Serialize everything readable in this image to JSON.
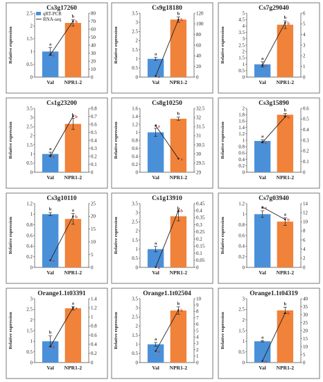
{
  "legend": [
    {
      "label": "qRT-PCR",
      "kind": "bar",
      "color": "#4a90d9"
    },
    {
      "label": "RNA-seq",
      "kind": "line",
      "color": "#222222"
    }
  ],
  "colors": {
    "val_bar": "#4a90d9",
    "npr_bar": "#f0823a",
    "line": "#222222",
    "rna_letter": "#d9332b",
    "qpcr_letter": "#222222"
  },
  "chart_data": [
    {
      "type": "bar+line",
      "title": "Cs3g17260",
      "categories": [
        "Val",
        "NPR1-2"
      ],
      "ylabel": "Relative expression",
      "left": {
        "ylim": [
          0,
          2.5
        ],
        "ticks": [
          "0",
          "0.5",
          "1",
          "1.5",
          "2",
          "2.5"
        ],
        "values": [
          1,
          2.12
        ],
        "errors": [
          0.15,
          0.12
        ],
        "letters": [
          "a",
          "b"
        ]
      },
      "right": {
        "ylim": [
          0,
          80
        ],
        "ticks": [
          "0",
          "10",
          "20",
          "30",
          "40",
          "50",
          "60",
          "70",
          "80"
        ],
        "values": [
          28,
          70
        ],
        "letters": [
          "a",
          "b"
        ]
      }
    },
    {
      "type": "bar+line",
      "title": "Cs9g18180",
      "categories": [
        "Val",
        "NPR1-2"
      ],
      "ylabel": "Relative expression",
      "left": {
        "ylim": [
          0,
          3.5
        ],
        "ticks": [
          "0",
          "0.5",
          "1",
          "1.5",
          "2",
          "2.5",
          "3",
          "3.5"
        ],
        "values": [
          1,
          3.15
        ],
        "errors": [
          0.08,
          0.15
        ],
        "letters": [
          "a",
          "b"
        ]
      },
      "right": {
        "ylim": [
          0,
          120
        ],
        "ticks": [
          "0",
          "20",
          "40",
          "60",
          "80",
          "100",
          "120"
        ],
        "values": [
          2,
          108
        ],
        "letters": [
          "a",
          "b"
        ]
      }
    },
    {
      "type": "bar+line",
      "title": "Cs7g29040",
      "categories": [
        "Val",
        "NPR1-2"
      ],
      "ylabel": "Relative expression",
      "left": {
        "ylim": [
          0,
          5
        ],
        "ticks": [
          "0",
          "0.5",
          "1",
          "1.5",
          "2",
          "2.5",
          "3",
          "3.5",
          "4",
          "4.5",
          "5"
        ],
        "values": [
          1,
          4.1
        ],
        "errors": [
          0.2,
          0.3
        ],
        "letters": [
          "a",
          "b"
        ]
      },
      "right": {
        "ylim": [
          0,
          6
        ],
        "ticks": [
          "0",
          "1",
          "2",
          "3",
          "4",
          "5",
          "6"
        ],
        "values": [
          1.1,
          5.1
        ],
        "letters": [
          "a",
          "b"
        ]
      }
    },
    {
      "type": "bar+line",
      "title": "Cs1g23200",
      "categories": [
        "Val",
        "NPR1-2"
      ],
      "ylabel": "Relative expression",
      "left": {
        "ylim": [
          0,
          3.5
        ],
        "ticks": [
          "0",
          "0.5",
          "1",
          "1.5",
          "2",
          "2.5",
          "3",
          "3.5"
        ],
        "values": [
          1,
          2.65
        ],
        "errors": [
          0.1,
          0.3
        ],
        "letters": [
          "a",
          "b"
        ]
      },
      "right": {
        "ylim": [
          0,
          0.8
        ],
        "ticks": [
          "0",
          "0.1",
          "0.2",
          "0.3",
          "0.4",
          "0.5",
          "0.6",
          "0.7",
          "0.8"
        ],
        "values": [
          0.2,
          0.7
        ],
        "letters": [
          "a",
          "b"
        ]
      }
    },
    {
      "type": "bar+line",
      "title": "Cs8g10250",
      "categories": [
        "Val",
        "NPR1-2"
      ],
      "ylabel": "Relative expression",
      "left": {
        "ylim": [
          0,
          1.6
        ],
        "ticks": [
          "0",
          "0.2",
          "0.4",
          "0.6",
          "0.8",
          "1",
          "1.2",
          "1.4",
          "1.6"
        ],
        "values": [
          1,
          1.34
        ],
        "errors": [
          0.1,
          0.04
        ],
        "letters": [
          "a",
          "b"
        ]
      },
      "right": {
        "ylim": [
          29,
          32.5
        ],
        "ticks": [
          "29",
          "29.5",
          "30",
          "30.5",
          "31",
          "31.5",
          "32",
          "32.5"
        ],
        "values": [
          31.55,
          29.75
        ],
        "letters": [
          "a",
          "a"
        ]
      }
    },
    {
      "type": "bar+line",
      "title": "Cs3g15890",
      "categories": [
        "Val",
        "NPR1-2"
      ],
      "ylabel": "Relative expression",
      "left": {
        "ylim": [
          0,
          2
        ],
        "ticks": [
          "0",
          "0.2",
          "0.4",
          "0.6",
          "0.8",
          "1",
          "1.2",
          "1.4",
          "1.6",
          "1.8",
          "2"
        ],
        "values": [
          0.98,
          1.8
        ],
        "errors": [
          0.04,
          0.04
        ],
        "letters": [
          "a",
          "b"
        ]
      },
      "right": {
        "ylim": [
          0,
          0.6
        ],
        "ticks": [
          "0",
          "0.1",
          "0.2",
          "0.3",
          "0.4",
          "0.5",
          "0.6"
        ],
        "values": [
          0.28,
          0.52
        ],
        "letters": [
          "a",
          "b"
        ]
      }
    },
    {
      "type": "bar+line",
      "title": "Cs3g10110",
      "categories": [
        "Val",
        "NPR1-2"
      ],
      "ylabel": "Relative expression",
      "left": {
        "ylim": [
          0,
          1.2
        ],
        "ticks": [
          "0",
          "0.2",
          "0.4",
          "0.6",
          "0.8",
          "1",
          "1.2"
        ],
        "values": [
          1,
          0.91
        ],
        "errors": [
          0.03,
          0.1
        ],
        "letters": [
          "b",
          "a"
        ]
      },
      "right": {
        "ylim": [
          0,
          25
        ],
        "ticks": [
          "0",
          "5",
          "10",
          "15",
          "20",
          "25"
        ],
        "values": [
          2.8,
          20
        ],
        "letters": [
          "a",
          "b"
        ]
      }
    },
    {
      "type": "bar+line",
      "title": "Cs1g13910",
      "categories": [
        "Val",
        "NPR1-2"
      ],
      "ylabel": "Relative expression",
      "left": {
        "ylim": [
          0,
          3.5
        ],
        "ticks": [
          "0",
          "0.5",
          "1",
          "1.5",
          "2",
          "2.5",
          "3",
          "3.5"
        ],
        "values": [
          1,
          2.8
        ],
        "errors": [
          0.15,
          0.25
        ],
        "letters": [
          "a",
          "b"
        ]
      },
      "right": {
        "ylim": [
          0,
          0.45
        ],
        "ticks": [
          "0",
          "0.05",
          "0.1",
          "0.15",
          "0.2",
          "0.25",
          "0.3",
          "0.35",
          "0.4",
          "0.45"
        ],
        "values": [
          0.002,
          0.4
        ],
        "letters": [
          "a",
          "b"
        ]
      }
    },
    {
      "type": "bar+line",
      "title": "Cs7g03940",
      "categories": [
        "Val",
        "NPR1-2"
      ],
      "ylabel": "Relative expression",
      "left": {
        "ylim": [
          0,
          1.2
        ],
        "ticks": [
          "0",
          "0.2",
          "0.4",
          "0.6",
          "0.8",
          "1",
          "1.2"
        ],
        "values": [
          1,
          0.86
        ],
        "errors": [
          0.06,
          0.07
        ],
        "letters": [
          "a",
          "a"
        ]
      },
      "right": {
        "ylim": [
          0,
          14
        ],
        "ticks": [
          "0",
          "2",
          "4",
          "6",
          "8",
          "10",
          "12",
          "14"
        ],
        "values": [
          13.2,
          10.5
        ],
        "letters": [
          "a",
          "b"
        ]
      }
    },
    {
      "type": "bar+line",
      "title": "Orange1.1t03391",
      "categories": [
        "Val",
        "NPR1-2"
      ],
      "ylabel": "Relative expression",
      "left": {
        "ylim": [
          0,
          3
        ],
        "ticks": [
          "0",
          "0.5",
          "1",
          "1.5",
          "2",
          "2.5",
          "3"
        ],
        "values": [
          1,
          2.55
        ],
        "errors": [
          0.25,
          0.08
        ],
        "letters": [
          "b",
          "a"
        ]
      },
      "right": {
        "ylim": [
          0,
          1.4
        ],
        "ticks": [
          "0",
          "0.2",
          "0.4",
          "0.6",
          "0.8",
          "1",
          "1.2",
          "1.4"
        ],
        "values": [
          0.35,
          1.2
        ],
        "letters": [
          "b",
          "a"
        ]
      }
    },
    {
      "type": "bar+line",
      "title": "Orange1.1t02504",
      "categories": [
        "Val",
        "NPR1-2"
      ],
      "ylabel": "Relative expression",
      "left": {
        "ylim": [
          0,
          3.5
        ],
        "ticks": [
          "0",
          "0.5",
          "1",
          "1.5",
          "2",
          "2.5",
          "3",
          "3.5"
        ],
        "values": [
          1,
          2.85
        ],
        "errors": [
          0.1,
          0.2
        ],
        "letters": [
          "a",
          "b"
        ]
      },
      "right": {
        "ylim": [
          0,
          10
        ],
        "ticks": [
          "0",
          "1",
          "2",
          "3",
          "4",
          "5",
          "6",
          "7",
          "8",
          "9",
          "10"
        ],
        "values": [
          1.8,
          8.2
        ],
        "letters": [
          "a",
          "b"
        ]
      }
    },
    {
      "type": "bar+line",
      "title": "Orange1.1t04319",
      "categories": [
        "Val",
        "NPR1-2"
      ],
      "ylabel": "Relative expression",
      "left": {
        "ylim": [
          0,
          3
        ],
        "ticks": [
          "0",
          "0.5",
          "1",
          "1.5",
          "2",
          "2.5",
          "3"
        ],
        "values": [
          1,
          2.45
        ],
        "errors": [
          0.03,
          0.15
        ],
        "letters": [
          "a",
          "b"
        ]
      },
      "right": {
        "ylim": [
          0,
          40
        ],
        "ticks": [
          "0",
          "5",
          "10",
          "15",
          "20",
          "25",
          "30",
          "35",
          "40"
        ],
        "values": [
          1,
          31
        ],
        "letters": [
          "a",
          "b"
        ]
      }
    }
  ]
}
